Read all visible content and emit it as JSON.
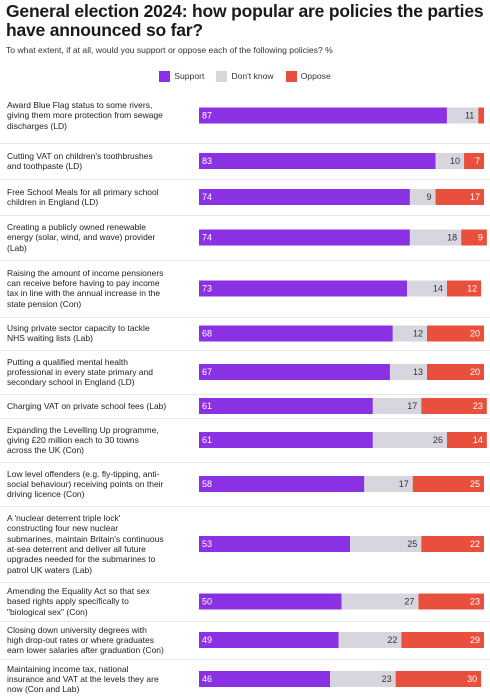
{
  "title": "General election 2024: how popular are policies the parties have announced so far?",
  "subtitle": "To what extent, if at all, would you support or oppose each of the following policies? %",
  "colors": {
    "support": "#8a31e3",
    "dont_know": "#d7d5de",
    "oppose": "#e8503d"
  },
  "chart_data": {
    "type": "bar",
    "stacked": true,
    "orientation": "horizontal",
    "xlim": [
      0,
      100
    ],
    "legend": "top-center",
    "grid": false,
    "categories": [
      "Award Blue Flag status to some rivers, giving them more protection from sewage discharges (LD)",
      "Cutting VAT on children's toothbrushes and toothpaste (LD)",
      "Free School Meals for all primary school children in England (LD)",
      "Creating a publicly owned renewable energy (solar, wind, and wave) provider (Lab)",
      "Raising the amount of income pensioners can receive before having to pay income tax in line with the annual increase in the state pension (Con)",
      "Using private sector capacity to tackle NHS waiting lists (Lab)",
      "Putting a qualified mental health professional in every state primary and secondary school in England (LD)",
      "Charging VAT on private school fees (Lab)",
      "Expanding the Levelling Up programme, giving £20 million each to 30 towns across the UK (Con)",
      "Low level offenders (e.g. fly-tipping, anti-social behaviour) receiving points on their driving licence (Con)",
      "A 'nuclear deterrent triple lock' constructing four new nuclear submarines, maintain Britain's continuous at-sea deterrent and deliver all future upgrades needed for the submarines to patrol UK waters (Lab)",
      "Amending the Equality Act so that sex based rights apply specifically to \"biological sex\" (Con)",
      "Closing down university degrees with high drop-out rates or where graduates earn lower salaries after graduation (Con)",
      "Maintaining income tax, national insurance and VAT at the levels they are now (Con and Lab)"
    ],
    "series": [
      {
        "name": "Support",
        "color": "#8a31e3",
        "values": [
          87,
          83,
          74,
          74,
          73,
          68,
          67,
          61,
          61,
          58,
          53,
          50,
          49,
          46
        ]
      },
      {
        "name": "Don't know",
        "color": "#d7d5de",
        "values": [
          11,
          10,
          9,
          18,
          14,
          12,
          13,
          17,
          26,
          17,
          25,
          27,
          22,
          23
        ]
      },
      {
        "name": "Oppose",
        "color": "#e8503d",
        "values": [
          2,
          7,
          17,
          9,
          12,
          20,
          20,
          23,
          14,
          25,
          22,
          23,
          29,
          30
        ]
      }
    ],
    "value_labels": [
      [
        "87",
        "11",
        ""
      ],
      [
        "83",
        "10",
        "7"
      ],
      [
        "74",
        "9",
        "17"
      ],
      [
        "74",
        "18",
        "9"
      ],
      [
        "73",
        "14",
        "12"
      ],
      [
        "68",
        "12",
        "20"
      ],
      [
        "67",
        "13",
        "20"
      ],
      [
        "61",
        "17",
        "23"
      ],
      [
        "61",
        "26",
        "14"
      ],
      [
        "58",
        "17",
        "25"
      ],
      [
        "53",
        "25",
        "22"
      ],
      [
        "50",
        "27",
        "23"
      ],
      [
        "49",
        "22",
        "29"
      ],
      [
        "46",
        "23",
        "30"
      ]
    ],
    "row_labels": [
      [
        "Award Blue Flag status to some rivers,",
        "giving them more protection from sewage",
        "discharges (LD)"
      ],
      [
        "Cutting VAT on children's toothbrushes",
        "and toothpaste (LD)"
      ],
      [
        "Free School Meals for all primary school",
        "children in England (LD)"
      ],
      [
        "Creating a publicly owned renewable",
        "energy (solar, wind, and wave) provider",
        "(Lab)"
      ],
      [
        "Raising the amount of income pensioners",
        "can receive before having to pay income",
        "tax in line with the annual increase in the",
        "state pension (Con)"
      ],
      [
        "Using private sector capacity to tackle",
        "NHS waiting lists (Lab)"
      ],
      [
        "Putting a qualified mental health",
        "professional in every state primary and",
        "secondary school in England (LD)"
      ],
      [
        "Charging VAT on private school fees (Lab)"
      ],
      [
        "Expanding the Levelling Up programme,",
        "giving £20 million each to 30 towns",
        "across the UK (Con)"
      ],
      [
        "Low level offenders (e.g. fly-tipping, anti-",
        "social behaviour) receiving points on their",
        "driving licence (Con)"
      ],
      [
        "A 'nuclear deterrent triple lock'",
        "constructing four new nuclear",
        "submarines, maintain Britain's continuous",
        "at-sea deterrent and deliver all future",
        "upgrades needed for the submarines to",
        "patrol UK waters (Lab)"
      ],
      [
        "Amending the Equality Act so that sex",
        "based rights apply specifically to",
        "\"biological sex\" (Con)"
      ],
      [
        "Closing down university degrees with",
        "high drop-out rates or where graduates",
        "earn lower salaries after graduation (Con)"
      ],
      [
        "Maintaining income tax, national",
        "insurance and VAT at the levels they are",
        "now (Con and Lab)"
      ]
    ]
  }
}
